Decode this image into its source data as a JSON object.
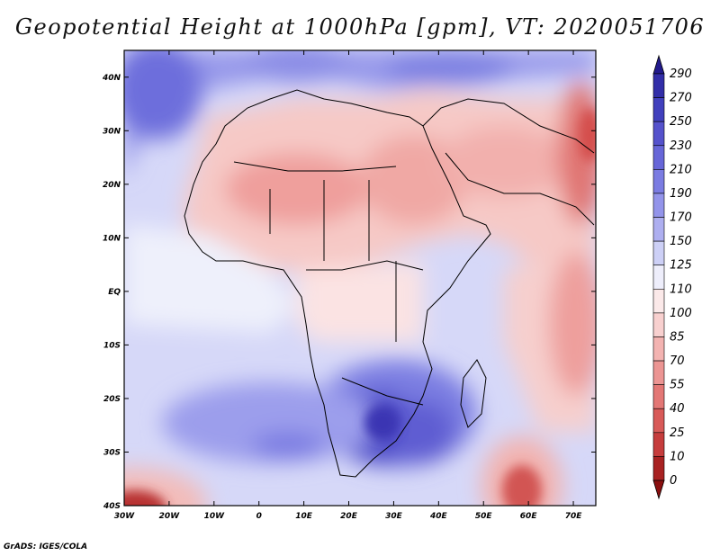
{
  "title": "Geopotential Height at 1000hPa [gpm], VT: 2020051706",
  "credit": "GrADS: IGES/COLA",
  "map": {
    "lon_range": [
      -30,
      75
    ],
    "lat_range": [
      -40,
      45
    ],
    "lon_ticks": [
      "30W",
      "20W",
      "10W",
      "0",
      "10E",
      "20E",
      "30E",
      "40E",
      "50E",
      "60E",
      "70E"
    ],
    "lat_ticks": [
      "40N",
      "30N",
      "20N",
      "10N",
      "EQ",
      "10S",
      "20S",
      "30S",
      "40S"
    ]
  },
  "colorbar": {
    "labels": [
      "290",
      "270",
      "250",
      "230",
      "210",
      "190",
      "170",
      "150",
      "125",
      "110",
      "100",
      "85",
      "70",
      "55",
      "40",
      "25",
      "10",
      "0"
    ],
    "colors": [
      "#221a8c",
      "#322ea8",
      "#4140bd",
      "#5552cc",
      "#6766d8",
      "#7b7ce2",
      "#9394ea",
      "#aeaff0",
      "#cdd0f6",
      "#eeeefb",
      "#fbe9e9",
      "#f8d0cf",
      "#f3b3b1",
      "#ec9593",
      "#e37775",
      "#d85a58",
      "#c63d3d",
      "#a82222",
      "#8a0f0f"
    ]
  }
}
